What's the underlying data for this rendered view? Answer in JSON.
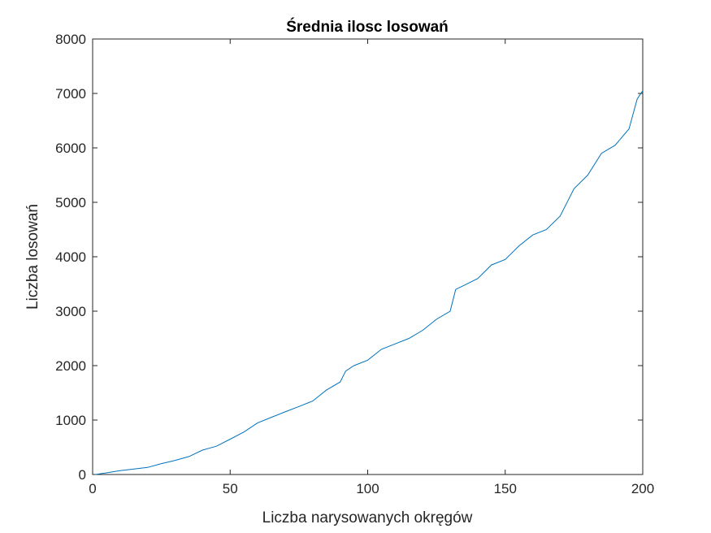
{
  "chart_data": {
    "type": "line",
    "title": "Średnia ilosc losowań",
    "xlabel": "Liczba narysowanych okręgów",
    "ylabel": "Liczba losowań",
    "xlim": [
      0,
      200
    ],
    "ylim": [
      0,
      8000
    ],
    "xticks": [
      0,
      50,
      100,
      150,
      200
    ],
    "yticks": [
      0,
      1000,
      2000,
      3000,
      4000,
      5000,
      6000,
      7000,
      8000
    ],
    "grid": false,
    "line_color": "#0072BD",
    "series": [
      {
        "x": [
          1,
          5,
          10,
          15,
          20,
          25,
          30,
          35,
          40,
          45,
          50,
          55,
          60,
          65,
          70,
          75,
          80,
          85,
          90,
          92,
          95,
          100,
          105,
          110,
          115,
          120,
          125,
          130,
          132,
          134,
          140,
          145,
          150,
          155,
          160,
          165,
          170,
          173,
          175,
          180,
          185,
          190,
          195,
          198,
          200
        ],
        "y": [
          0,
          30,
          70,
          100,
          130,
          200,
          260,
          330,
          450,
          520,
          650,
          780,
          950,
          1050,
          1150,
          1250,
          1350,
          1550,
          1700,
          1900,
          2000,
          2100,
          2300,
          2400,
          2500,
          2650,
          2850,
          3000,
          3400,
          3450,
          3600,
          3850,
          3950,
          4200,
          4400,
          4500,
          4750,
          5050,
          5250,
          5500,
          5900,
          6050,
          6350,
          6900,
          7050
        ]
      }
    ]
  }
}
